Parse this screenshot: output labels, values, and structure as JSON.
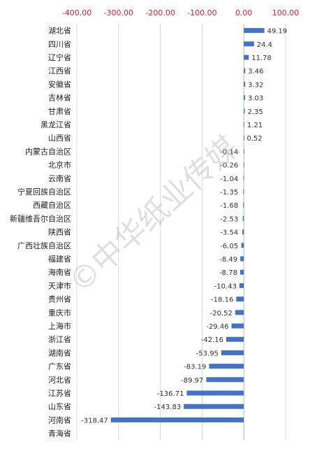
{
  "chart_data": {
    "type": "bar",
    "orientation": "horizontal",
    "xlim": [
      -400,
      100
    ],
    "xticks": [
      "-400.00",
      "-300.00",
      "-200.00",
      "-100.00",
      "0.00",
      "100.00"
    ],
    "xtick_values": [
      -400,
      -300,
      -200,
      -100,
      0,
      100
    ],
    "grid": true,
    "bar_color": "#4472c4",
    "tick_color": "#e0202a",
    "categories": [
      "湖北省",
      "四川省",
      "辽宁省",
      "江西省",
      "安徽省",
      "吉林省",
      "甘肃省",
      "黑龙江省",
      "山西省",
      "内蒙古自治区",
      "北京市",
      "云南省",
      "宁夏回族自治区",
      "西藏自治区",
      "新疆维吾尔自治区",
      "陕西省",
      "广西壮族自治区",
      "福建省",
      "海南省",
      "天津市",
      "贵州省",
      "重庆市",
      "上海市",
      "浙江省",
      "湖南省",
      "广东省",
      "河北省",
      "江苏省",
      "山东省",
      "河南省",
      "青海省"
    ],
    "values": [
      49.19,
      24.4,
      11.78,
      3.46,
      3.32,
      3.03,
      2.35,
      1.21,
      0.52,
      -0.14,
      -0.26,
      -1.04,
      -1.35,
      -1.68,
      -2.53,
      -3.54,
      -6.05,
      -8.49,
      -8.78,
      -10.43,
      -18.16,
      -20.52,
      -29.46,
      -42.16,
      -53.95,
      -83.19,
      -89.97,
      -136.71,
      -143.83,
      -318.47,
      null
    ],
    "data_labels": [
      "49.19",
      "24.4",
      "11.78",
      "3.46",
      "3.32",
      "3.03",
      "2.35",
      "1.21",
      "0.52",
      "-0.14",
      "-0.26",
      "-1.04",
      "-1.35",
      "-1.68",
      "-2.53",
      "-3.54",
      "-6.05",
      "-8.49",
      "-8.78",
      "-10.43",
      "-18.16",
      "-20.52",
      "-29.46",
      "-42.16",
      "-53.95",
      "-83.19",
      "-89.97",
      "-136.71",
      "-143.83",
      "-318.47",
      ""
    ]
  },
  "watermark": "©中华纸业传媒"
}
